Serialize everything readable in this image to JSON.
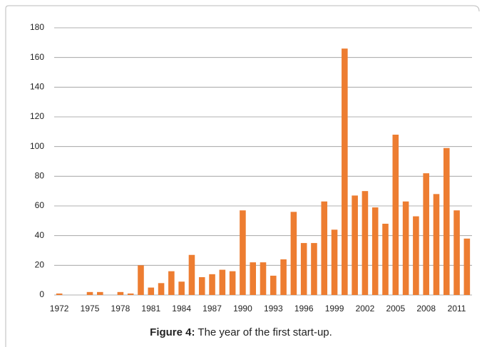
{
  "chart_data": {
    "type": "bar",
    "categories": [
      "1972",
      null,
      null,
      "1975",
      null,
      null,
      "1978",
      null,
      null,
      "1981",
      null,
      null,
      "1984",
      null,
      null,
      "1987",
      null,
      null,
      "1990",
      null,
      null,
      "1993",
      null,
      null,
      "1996",
      null,
      null,
      "1999",
      null,
      null,
      "2002",
      null,
      null,
      "2005",
      null,
      null,
      "2008",
      null,
      null,
      "2011",
      null
    ],
    "values": [
      1,
      0,
      0,
      2,
      2,
      0,
      2,
      1,
      20,
      5,
      8,
      16,
      9,
      27,
      12,
      14,
      17,
      16,
      57,
      22,
      22,
      13,
      24,
      56,
      35,
      35,
      63,
      44,
      166,
      67,
      70,
      59,
      48,
      108,
      63,
      53,
      82,
      68,
      99,
      57,
      38
    ],
    "color": "#ed7d31",
    "ylim": [
      0,
      180
    ],
    "yticks": [
      0,
      20,
      40,
      60,
      80,
      100,
      120,
      140,
      160,
      180
    ],
    "grid": true
  },
  "caption": {
    "label": "Figure 4:",
    "text": "The year of the first start-up."
  }
}
